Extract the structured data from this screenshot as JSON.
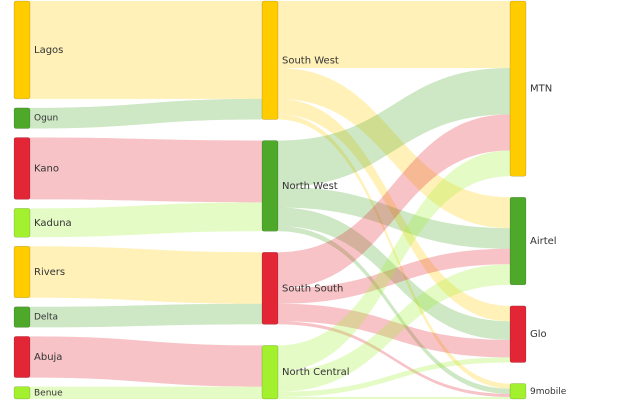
{
  "palette": {
    "yellow": "#FFCC00",
    "green": "#4EA82A",
    "red": "#E32636",
    "lime": "#A3F02E"
  },
  "nodes": [
    {
      "id": "lagos",
      "label": "Lagos",
      "column": 0,
      "color": "yellow",
      "value": 95,
      "small": false
    },
    {
      "id": "ogun",
      "label": "Ogun",
      "column": 0,
      "color": "green",
      "value": 20,
      "small": true
    },
    {
      "id": "kano",
      "label": "Kano",
      "column": 0,
      "color": "red",
      "value": 60,
      "small": false
    },
    {
      "id": "kaduna",
      "label": "Kaduna",
      "column": 0,
      "color": "lime",
      "value": 28,
      "small": false
    },
    {
      "id": "rivers",
      "label": "Rivers",
      "column": 0,
      "color": "yellow",
      "value": 50,
      "small": false
    },
    {
      "id": "delta",
      "label": "Delta",
      "column": 0,
      "color": "green",
      "value": 20,
      "small": true
    },
    {
      "id": "abuja",
      "label": "Abuja",
      "column": 0,
      "color": "red",
      "value": 40,
      "small": false
    },
    {
      "id": "benue",
      "label": "Benue",
      "column": 0,
      "color": "lime",
      "value": 12,
      "small": true
    },
    {
      "id": "sw",
      "label": "South West",
      "column": 1,
      "color": "yellow",
      "value": 115,
      "small": false
    },
    {
      "id": "nw",
      "label": "North West",
      "column": 1,
      "color": "green",
      "value": 88,
      "small": false
    },
    {
      "id": "ss",
      "label": "South South",
      "column": 1,
      "color": "red",
      "value": 70,
      "small": false
    },
    {
      "id": "nc",
      "label": "North Central",
      "column": 1,
      "color": "lime",
      "value": 52,
      "small": false
    },
    {
      "id": "mtn",
      "label": "MTN",
      "column": 2,
      "color": "yellow",
      "value": 170,
      "small": false
    },
    {
      "id": "airtel",
      "label": "Airtel",
      "column": 2,
      "color": "green",
      "value": 85,
      "small": false
    },
    {
      "id": "glo",
      "label": "Glo",
      "column": 2,
      "color": "red",
      "value": 55,
      "small": false
    },
    {
      "id": "9mobile",
      "label": "9mobile",
      "column": 2,
      "color": "lime",
      "value": 15,
      "small": true
    }
  ],
  "links": [
    {
      "source": "lagos",
      "target": "sw",
      "value": 95
    },
    {
      "source": "ogun",
      "target": "sw",
      "value": 20
    },
    {
      "source": "kano",
      "target": "nw",
      "value": 60
    },
    {
      "source": "kaduna",
      "target": "nw",
      "value": 28
    },
    {
      "source": "rivers",
      "target": "ss",
      "value": 50
    },
    {
      "source": "delta",
      "target": "ss",
      "value": 20
    },
    {
      "source": "abuja",
      "target": "nc",
      "value": 40
    },
    {
      "source": "benue",
      "target": "nc",
      "value": 12
    },
    {
      "source": "sw",
      "target": "mtn",
      "value": 65
    },
    {
      "source": "sw",
      "target": "airtel",
      "value": 30
    },
    {
      "source": "sw",
      "target": "glo",
      "value": 15
    },
    {
      "source": "sw",
      "target": "9mobile",
      "value": 5
    },
    {
      "source": "nw",
      "target": "mtn",
      "value": 45
    },
    {
      "source": "nw",
      "target": "airtel",
      "value": 20
    },
    {
      "source": "nw",
      "target": "glo",
      "value": 18
    },
    {
      "source": "nw",
      "target": "9mobile",
      "value": 5
    },
    {
      "source": "ss",
      "target": "mtn",
      "value": 35
    },
    {
      "source": "ss",
      "target": "airtel",
      "value": 15
    },
    {
      "source": "ss",
      "target": "glo",
      "value": 17
    },
    {
      "source": "ss",
      "target": "9mobile",
      "value": 3
    },
    {
      "source": "nc",
      "target": "mtn",
      "value": 25
    },
    {
      "source": "nc",
      "target": "airtel",
      "value": 20
    },
    {
      "source": "nc",
      "target": "glo",
      "value": 5
    },
    {
      "source": "nc",
      "target": "9mobile",
      "value": 2
    }
  ]
}
